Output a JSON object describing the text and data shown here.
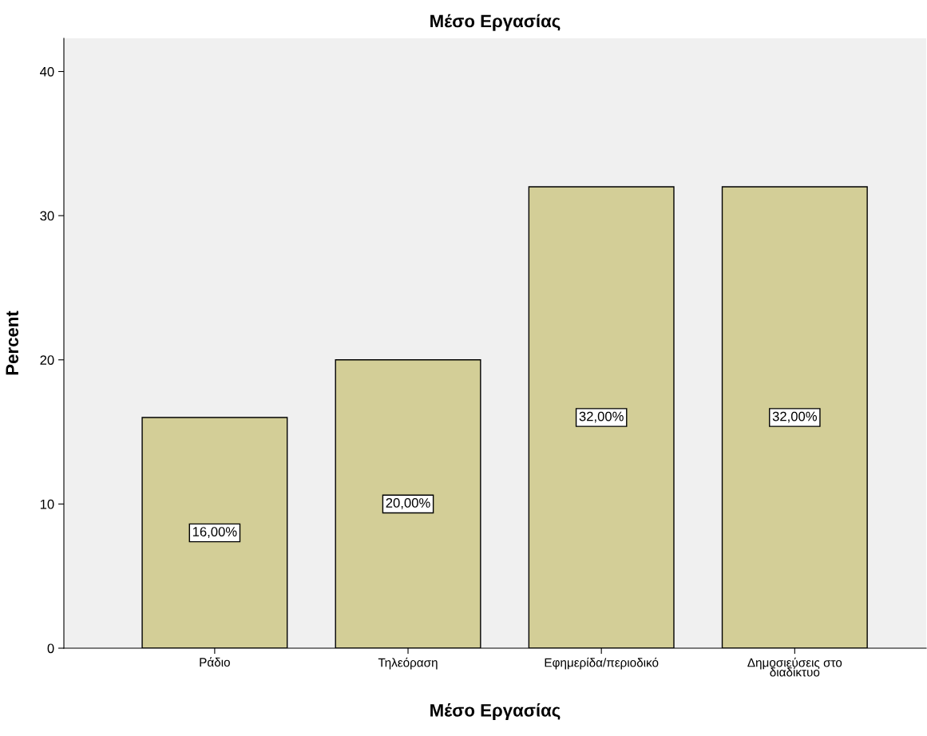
{
  "chart_data": {
    "type": "bar",
    "title": "Μέσο Εργασίας",
    "xlabel": "Μέσο Εργασίας",
    "ylabel": "Percent",
    "categories": [
      "Ράδιο",
      "Τηλεόραση",
      "Εφημερίδα/περιοδικό",
      "Δημοσιεύσεις στο διαδίκτυο"
    ],
    "values": [
      16,
      20,
      32,
      32
    ],
    "value_labels": [
      "16,00%",
      "20,00%",
      "32,00%",
      "32,00%"
    ],
    "color": "#d3ce97",
    "ylim": [
      0,
      42.3
    ],
    "yticks": [
      0,
      10,
      20,
      30,
      40
    ],
    "grid": false
  }
}
